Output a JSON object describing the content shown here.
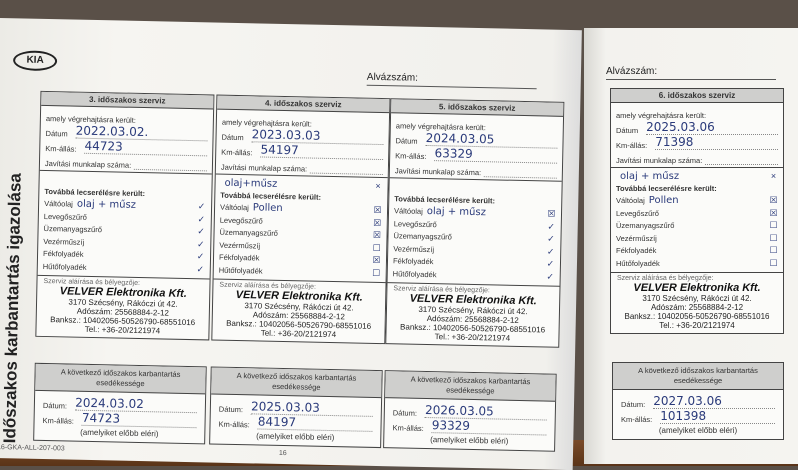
{
  "brand": "KIA",
  "vertical_title": "Időszakos karbantartás igazolása",
  "chassis_label": "Alvázszám:",
  "doc_code": "16-GKA-ALL-207-003",
  "page_number": "16",
  "labels": {
    "performed": "amely végrehajtásra került:",
    "date": "Dátum",
    "km": "Km-állás:",
    "worksheet": "Javítási munkalap száma:",
    "replaced": "Továbbá lecserélésre került:",
    "stamp_caption": "Szerviz aláírása és bélyegzője:",
    "next_title": "A következő időszakos karbantartás esedékessége",
    "next_date": "Dátum:",
    "next_km": "Km-állás:",
    "whichever": "(amelyiket előbb eléri)"
  },
  "items": [
    "Váltóolaj",
    "Levegőszűrő",
    "Üzemanyagszűrő",
    "Vezérműszíj",
    "Fékfolyadék",
    "Hűtőfolyadék"
  ],
  "stamp": {
    "firm": "VELVER Elektronika Kft.",
    "address": "3170 Szécsény, Rákóczi út 42.",
    "tax": "Adószám: 25568884-2-12",
    "bank": "Banksz.: 10402056-50526790-68551016",
    "tel": "Tel.: +36-20/2121974"
  },
  "services": [
    {
      "title": "3. időszakos szerviz",
      "date": "2022.03.02.",
      "km": "44723",
      "note_top": "",
      "item0_note": "olaj + műsz",
      "checks": [
        "✓",
        "✓",
        "✓",
        "✓",
        "✓",
        "✓"
      ],
      "top_check": ""
    },
    {
      "title": "4. időszakos szerviz",
      "date": "2023.03.03",
      "km": "54197",
      "note_top": "olaj+műsz",
      "item0_note": "Pollen",
      "checks": [
        "☒",
        "☒",
        "☒",
        "☐",
        "☒",
        "☐"
      ],
      "top_check": "×"
    },
    {
      "title": "5. időszakos szerviz",
      "date": "2024.03.05",
      "km": "63329",
      "note_top": "",
      "item0_note": "olaj + műsz",
      "checks": [
        "☒",
        "✓",
        "✓",
        "✓",
        "✓",
        "✓"
      ],
      "top_check": ""
    },
    {
      "title": "6. időszakos szerviz",
      "date": "2025.03.06",
      "km": "71398",
      "note_top": "olaj + műsz",
      "item0_note": "Pollen",
      "checks": [
        "☒",
        "☒",
        "☐",
        "☐",
        "☐",
        "☐"
      ],
      "top_check": "×"
    }
  ],
  "next": [
    {
      "date": "2024.03.02",
      "km": "74723"
    },
    {
      "date": "2025.03.03",
      "km": "84197"
    },
    {
      "date": "2026.03.05",
      "km": "93329"
    },
    {
      "date": "2027.03.06",
      "km": "101398"
    }
  ]
}
